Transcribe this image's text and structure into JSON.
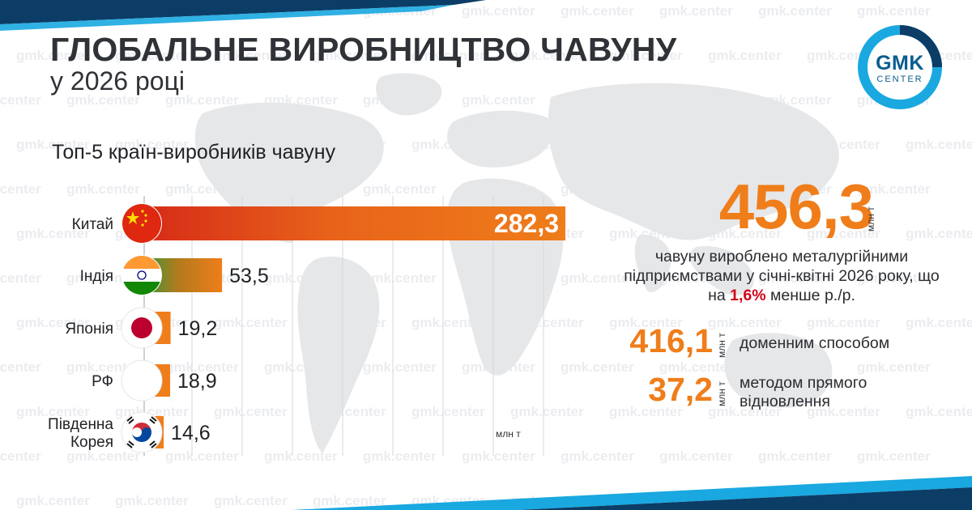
{
  "title": "ГЛОБАЛЬНЕ ВИРОБНИЦТВО ЧАВУНУ",
  "subtitle": "у 2026 році",
  "watermark_text": "gmk.center",
  "logo": {
    "top": "GMK",
    "bottom": "CENTER"
  },
  "colors": {
    "accent": "#ef7d1a",
    "accent_dark": "#d65a12",
    "dark_blue": "#0b3d66",
    "light_blue": "#19a9e0",
    "highlight_red": "#d0021b",
    "text": "#2f3236"
  },
  "chart_data": {
    "type": "bar",
    "orientation": "horizontal",
    "title": "Топ-5 країн-виробників чавуну",
    "unit_label": "млн т",
    "categories": [
      "Китай",
      "Індія",
      "Японія",
      "РФ",
      "Південна Корея"
    ],
    "category_lines": [
      [
        "Китай"
      ],
      [
        "Індія"
      ],
      [
        "Японія"
      ],
      [
        "РФ"
      ],
      [
        "Південна",
        "Корея"
      ]
    ],
    "flag_icons": [
      "china-flag-icon",
      "india-flag-icon",
      "japan-flag-icon",
      "russia-flag-icon",
      "south-korea-flag-icon"
    ],
    "values": [
      282.3,
      53.5,
      19.2,
      18.9,
      14.6
    ],
    "value_labels": [
      "282,3",
      "53,5",
      "19,2",
      "18,9",
      "14,6"
    ],
    "xlim": [
      0,
      282.3
    ],
    "grid": true,
    "legend": "none"
  },
  "summary": {
    "total_value": "456,3",
    "total_unit": "млн т",
    "description_part1": "чавуну вироблено металургійними підприємствами у січні-квітні 2026 року, що на ",
    "description_highlight": "1,6%",
    "description_part2": " менше р./р.",
    "breakdown": [
      {
        "value": "416,1",
        "unit": "млн т",
        "label_lines": [
          "доменним способом"
        ]
      },
      {
        "value": "37,2",
        "unit": "млн т",
        "label_lines": [
          "методом прямого",
          "відновлення"
        ]
      }
    ]
  }
}
